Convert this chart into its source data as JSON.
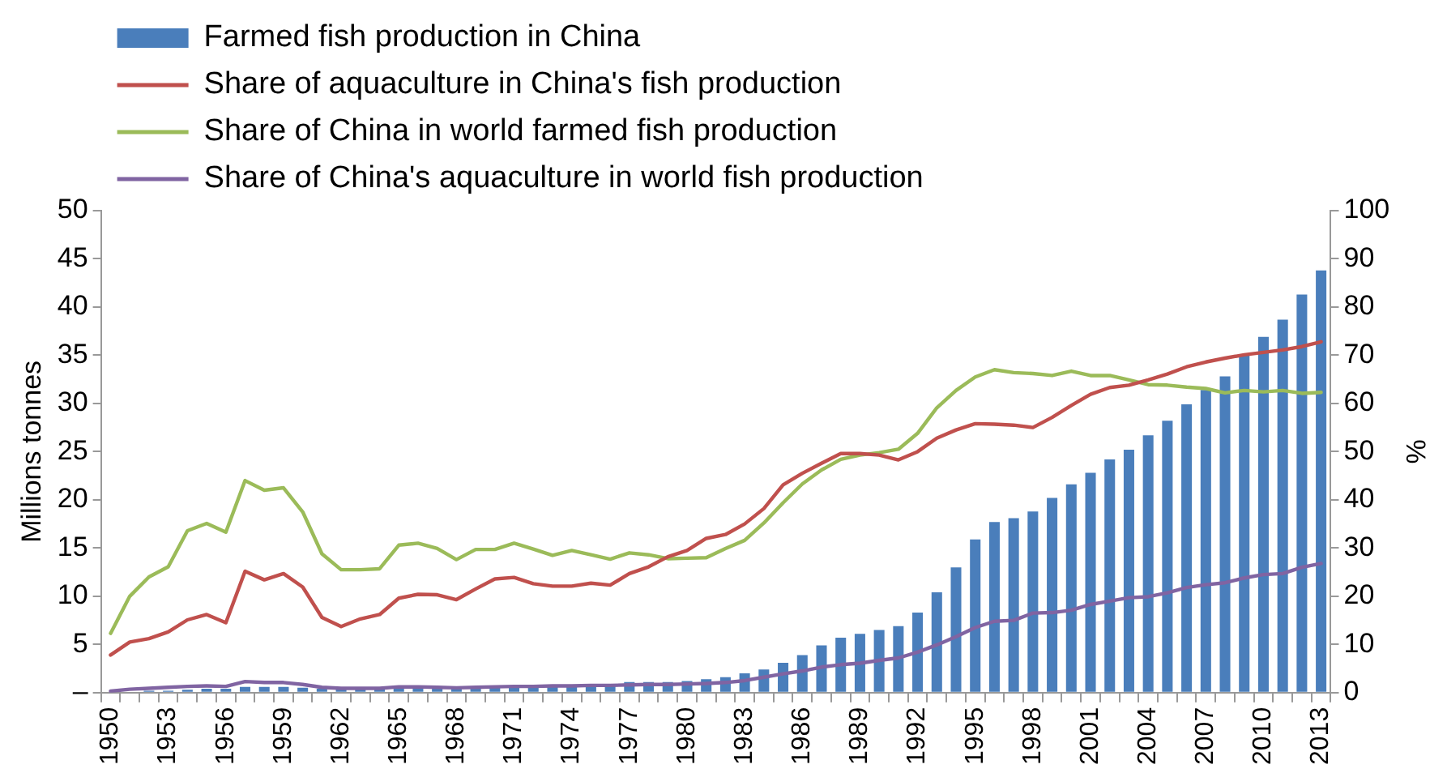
{
  "chart_data": {
    "type": "bar",
    "ylabel": "Millions tonnes",
    "y2label": "%",
    "categories": [
      "1950",
      null,
      null,
      "1953",
      null,
      null,
      "1956",
      null,
      null,
      "1959",
      null,
      null,
      "1962",
      null,
      null,
      "1965",
      null,
      null,
      "1968",
      null,
      null,
      "1971",
      null,
      null,
      "1974",
      null,
      null,
      "1977",
      null,
      null,
      "1980",
      null,
      null,
      "1983",
      null,
      null,
      "1986",
      null,
      null,
      "1989",
      null,
      null,
      "1992",
      null,
      null,
      "1995",
      null,
      null,
      "1998",
      null,
      null,
      "2001",
      null,
      null,
      "2004",
      null,
      null,
      "2007",
      null,
      null,
      "2010",
      null,
      null,
      "2013"
    ],
    "series": [
      {
        "name": "Farmed fish production in China",
        "color": "#4a7ebb",
        "values": [
          null,
          null,
          0.2,
          0.2,
          0.3,
          0.4,
          0.4,
          0.6,
          0.6,
          0.6,
          0.5,
          0.4,
          0.4,
          0.4,
          0.4,
          0.5,
          0.5,
          0.5,
          0.4,
          0.5,
          0.5,
          0.6,
          0.6,
          0.6,
          0.7,
          0.8,
          0.9,
          1.1,
          1.1,
          1.1,
          1.2,
          1.4,
          1.6,
          2.0,
          2.4,
          3.1,
          3.9,
          4.9,
          5.7,
          6.1,
          6.5,
          6.9,
          8.3,
          10.4,
          13.0,
          15.9,
          17.7,
          18.1,
          18.8,
          20.2,
          21.6,
          22.8,
          24.2,
          25.2,
          26.7,
          28.2,
          29.9,
          31.4,
          32.8,
          35.0,
          36.9,
          38.7,
          41.3,
          43.8
        ]
      },
      {
        "name": "Share of aquaculture in China's fish production",
        "type": "line",
        "axis": "y2",
        "color": "#c0504d",
        "values": [
          7.8,
          10.5,
          11.2,
          12.6,
          15.1,
          16.2,
          14.5,
          25.2,
          23.4,
          24.7,
          21.9,
          15.6,
          13.7,
          15.3,
          16.2,
          19.6,
          20.4,
          20.3,
          19.3,
          21.5,
          23.6,
          23.9,
          22.6,
          22.1,
          22.1,
          22.7,
          22.3,
          24.7,
          26.1,
          28.2,
          29.5,
          32.0,
          32.8,
          35.0,
          38.2,
          43.1,
          45.5,
          47.6,
          49.6,
          49.6,
          49.3,
          48.3,
          50.0,
          52.8,
          54.5,
          55.8,
          55.7,
          55.5,
          55.0,
          57.1,
          59.6,
          61.9,
          63.3,
          63.8,
          64.9,
          66.1,
          67.6,
          68.6,
          69.4,
          70.1,
          70.6,
          71.1,
          71.8,
          72.8
        ]
      },
      {
        "name": "Share of China in world farmed fish production",
        "type": "line",
        "axis": "y2",
        "color": "#9bbb59",
        "values": [
          12.3,
          20.0,
          24.0,
          26.1,
          33.6,
          35.1,
          33.3,
          44.0,
          42.0,
          42.5,
          37.5,
          28.8,
          25.5,
          25.5,
          25.7,
          30.6,
          31.0,
          29.9,
          27.6,
          29.7,
          29.7,
          31.0,
          29.8,
          28.5,
          29.5,
          28.6,
          27.7,
          29.0,
          28.6,
          27.8,
          27.9,
          28.0,
          29.9,
          31.6,
          35.2,
          39.4,
          43.3,
          46.2,
          48.4,
          49.3,
          49.8,
          50.5,
          53.8,
          59.1,
          62.7,
          65.5,
          67.0,
          66.4,
          66.2,
          65.8,
          66.7,
          65.8,
          65.8,
          64.9,
          63.9,
          63.8,
          63.4,
          63.1,
          62.2,
          62.7,
          62.4,
          62.7,
          62.1,
          62.3
        ]
      },
      {
        "name": "Share of China's aquaculture in world fish production",
        "type": "line",
        "axis": "y2",
        "color": "#8064a2",
        "values": [
          0.3,
          0.7,
          0.9,
          1.1,
          1.3,
          1.4,
          1.3,
          2.3,
          2.1,
          2.1,
          1.7,
          1.1,
          0.9,
          0.9,
          0.9,
          1.2,
          1.2,
          1.1,
          1.0,
          1.1,
          1.2,
          1.3,
          1.3,
          1.4,
          1.4,
          1.5,
          1.5,
          1.6,
          1.7,
          1.7,
          1.8,
          1.9,
          2.1,
          2.5,
          3.2,
          3.9,
          4.5,
          5.3,
          5.8,
          6.1,
          6.7,
          7.2,
          8.4,
          9.9,
          11.6,
          13.5,
          14.8,
          15.0,
          16.5,
          16.6,
          17.1,
          18.3,
          19.0,
          19.7,
          19.9,
          20.7,
          21.8,
          22.4,
          22.8,
          23.8,
          24.5,
          24.7,
          26.0,
          26.8
        ]
      }
    ],
    "ylim": [
      0,
      50
    ],
    "yticks": [
      {
        "value": 0,
        "label": "–"
      },
      5,
      10,
      15,
      20,
      25,
      30,
      35,
      40,
      45,
      50
    ],
    "y2lim": [
      0,
      100
    ],
    "y2ticks": [
      0,
      10,
      20,
      30,
      40,
      50,
      60,
      70,
      80,
      90,
      100
    ],
    "grid": false,
    "legend": "top",
    "marker": "none",
    "line_style": "solid"
  }
}
